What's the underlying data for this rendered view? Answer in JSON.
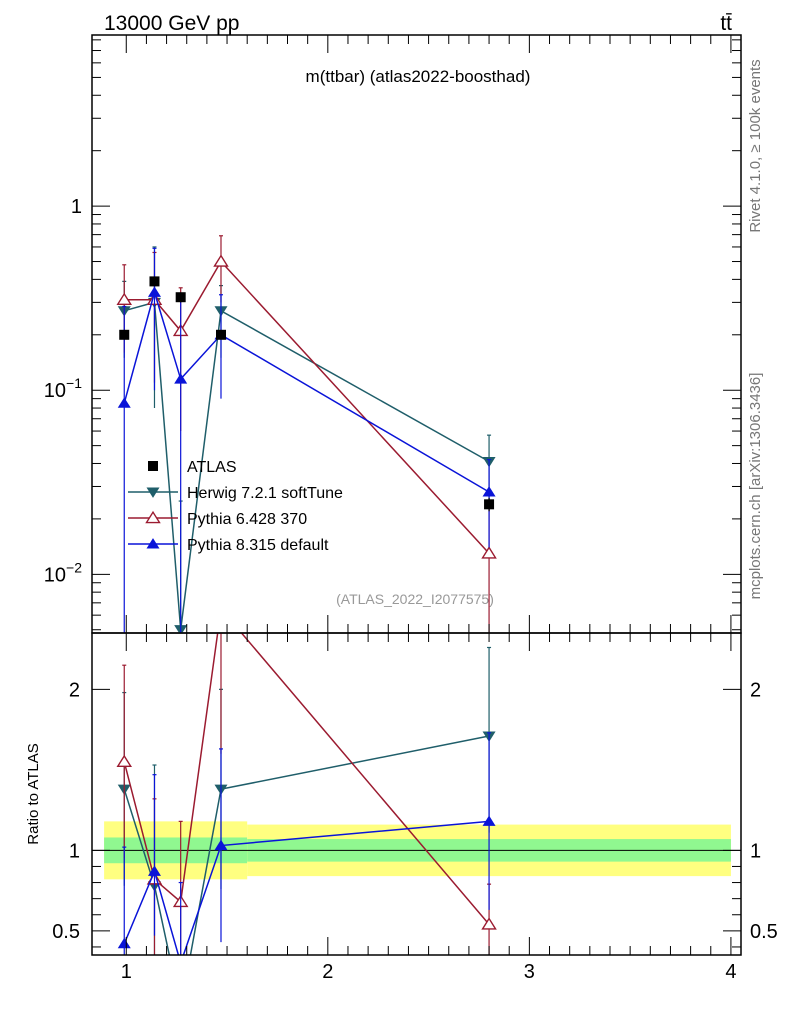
{
  "header": {
    "energy_label": "13000 GeV pp",
    "process_label": "tt̄"
  },
  "side_labels": {
    "rivet": "Rivet 4.1.0, ≥ 100k events",
    "source": "mcplots.cern.ch [arXiv:1306.3436]"
  },
  "chart_data": {
    "type": "line",
    "title": "m(ttbar) (atlas2022-boosthad)",
    "watermark": "(ATLAS_2022_I2077575)",
    "x": {
      "label": "",
      "lim": [
        0.83,
        4.05
      ],
      "ticks": [
        1,
        2,
        3,
        4
      ],
      "tick_labels": [
        "1",
        "2",
        "3",
        "4"
      ]
    },
    "main": {
      "ylabel": "",
      "yscale": "log",
      "ylim": [
        0.0048,
        8.5
      ],
      "ticks": [
        {
          "v": 1,
          "base": "1",
          "exp": ""
        },
        {
          "v": 0.1,
          "base": "10",
          "exp": "−1"
        },
        {
          "v": 0.01,
          "base": "10",
          "exp": "−2"
        }
      ]
    },
    "ratio": {
      "ylabel": "Ratio to ATLAS",
      "ylim": [
        0.35,
        2.35
      ],
      "ticks": [
        {
          "v": 0.5,
          "label": "0.5"
        },
        {
          "v": 1,
          "label": "1"
        },
        {
          "v": 2,
          "label": "2"
        }
      ],
      "bands": [
        {
          "x0": 0.89,
          "x1": 1.6,
          "inner": [
            0.92,
            1.08
          ],
          "outer": [
            0.82,
            1.18
          ]
        },
        {
          "x0": 1.6,
          "x1": 4.0,
          "inner": [
            0.93,
            1.07
          ],
          "outer": [
            0.84,
            1.16
          ]
        }
      ]
    },
    "legend": {
      "position": "center-left"
    },
    "series": [
      {
        "name": "ATLAS",
        "marker": "square",
        "color": "#000000",
        "line": false,
        "x": [
          0.99,
          1.14,
          1.27,
          1.47,
          2.8
        ],
        "y": [
          0.2,
          0.39,
          0.32,
          0.2,
          0.024
        ],
        "yerr_lo": [
          0.01,
          0.02,
          0.02,
          0.01,
          0.002
        ],
        "yerr_hi": [
          0.01,
          0.02,
          0.02,
          0.01,
          0.002
        ],
        "ratio": [
          1,
          1,
          1,
          1,
          1
        ]
      },
      {
        "name": "Herwig 7.2.1 softTune",
        "marker": "triangle-down",
        "color": "#1f5e6a",
        "line": true,
        "x": [
          0.99,
          1.14,
          1.27,
          1.47,
          2.8
        ],
        "y": [
          0.27,
          0.3,
          0.005,
          0.27,
          0.041
        ],
        "yerr_lo": [
          0.12,
          0.22,
          0.004,
          0.12,
          0.016
        ],
        "yerr_hi": [
          0.12,
          0.3,
          0.02,
          0.1,
          0.016
        ],
        "ratio": [
          1.38,
          0.78,
          0.02,
          1.38,
          1.71
        ],
        "ratio_err_lo": [
          0.6,
          0.55,
          0.01,
          0.62,
          0.6
        ],
        "ratio_err_hi": [
          0.6,
          0.75,
          0.05,
          0.62,
          0.55
        ]
      },
      {
        "name": "Pythia 6.428 370",
        "marker": "triangle-up-open",
        "color": "#9b1b30",
        "line": true,
        "x": [
          0.99,
          1.14,
          1.27,
          1.47,
          2.8
        ],
        "y": [
          0.31,
          0.31,
          0.21,
          0.5,
          0.013
        ],
        "yerr_lo": [
          0.15,
          0.2,
          0.15,
          0.2,
          0.011
        ],
        "yerr_hi": [
          0.17,
          0.25,
          0.15,
          0.19,
          0.011
        ],
        "ratio": [
          1.55,
          0.82,
          0.68,
          2.5,
          0.54
        ],
        "ratio_err_lo": [
          0.6,
          0.5,
          0.5,
          0.9,
          0.25
        ],
        "ratio_err_hi": [
          0.6,
          0.5,
          0.5,
          0.9,
          0.25
        ]
      },
      {
        "name": "Pythia 8.315 default",
        "marker": "triangle-up",
        "color": "#0a14d8",
        "line": true,
        "x": [
          0.99,
          1.14,
          1.27,
          1.47,
          2.8
        ],
        "y": [
          0.085,
          0.34,
          0.115,
          0.2,
          0.028
        ],
        "yerr_lo": [
          0.084,
          0.24,
          0.114,
          0.11,
          0.014
        ],
        "yerr_hi": [
          0.2,
          0.25,
          0.2,
          0.13,
          0.014
        ],
        "ratio": [
          0.42,
          0.87,
          0.3,
          1.03,
          1.18
        ],
        "ratio_err_lo": [
          0.4,
          0.4,
          0.29,
          0.6,
          0.55
        ],
        "ratio_err_hi": [
          0.6,
          0.6,
          0.5,
          0.6,
          0.55
        ]
      }
    ]
  }
}
